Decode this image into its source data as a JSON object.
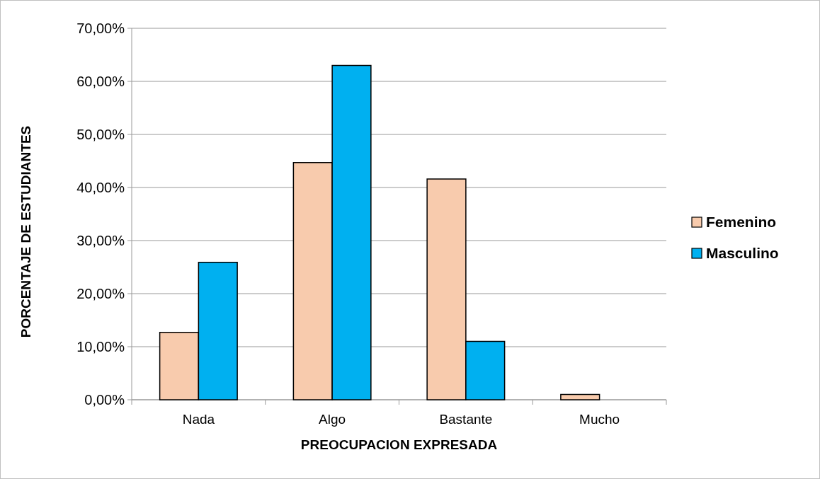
{
  "chart_data": {
    "type": "bar",
    "xlabel": "PREOCUPACION EXPRESADA",
    "ylabel": "PORCENTAJE DE ESTUDIANTES",
    "categories": [
      "Nada",
      "Algo",
      "Bastante",
      "Mucho"
    ],
    "series": [
      {
        "name": "Femenino",
        "color": "#f8cbad",
        "values": [
          12.7,
          44.7,
          41.6,
          1.0
        ]
      },
      {
        "name": "Masculino",
        "color": "#00b0f0",
        "values": [
          25.9,
          63.0,
          11.0,
          0
        ]
      }
    ],
    "ylim": [
      0,
      70
    ],
    "yticks": [
      {
        "value": 0,
        "label": "0,00%"
      },
      {
        "value": 10,
        "label": "10,00%"
      },
      {
        "value": 20,
        "label": "20,00%"
      },
      {
        "value": 30,
        "label": "30,00%"
      },
      {
        "value": 40,
        "label": "40,00%"
      },
      {
        "value": 50,
        "label": "50,00%"
      },
      {
        "value": 60,
        "label": "60,00%"
      },
      {
        "value": 70,
        "label": "70,00%"
      }
    ],
    "grid": "y",
    "legend": "right"
  }
}
